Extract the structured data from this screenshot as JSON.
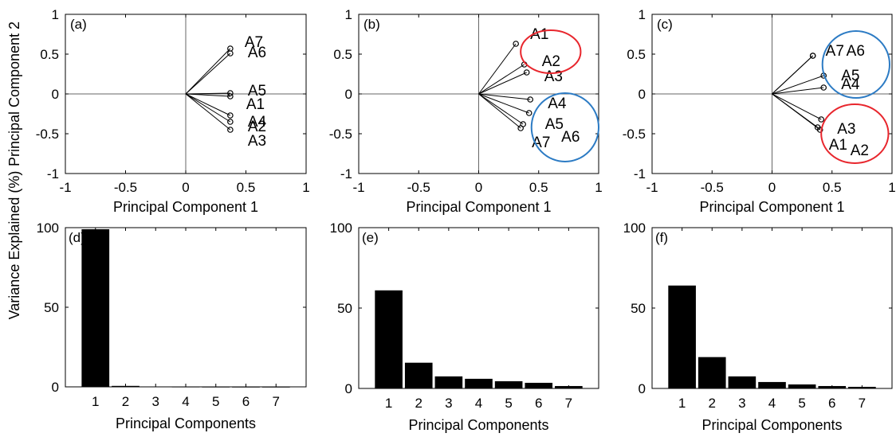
{
  "chart_data": [
    {
      "id": "a",
      "type": "scatter",
      "panel_label": "(a)",
      "xlabel": "Principal Component 1",
      "ylabel": "Principal Component 2",
      "xlim": [
        -1,
        1
      ],
      "ylim": [
        -1,
        1
      ],
      "xticks": [
        "-1",
        "-0.5",
        "0",
        "0.5",
        "1"
      ],
      "yticks": [
        "-1",
        "-0.5",
        "0",
        "0.5",
        "1"
      ],
      "points": [
        {
          "label": "A7",
          "x": 0.37,
          "y": 0.57
        },
        {
          "label": "A6",
          "x": 0.37,
          "y": 0.51
        },
        {
          "label": "A5",
          "x": 0.37,
          "y": 0.01
        },
        {
          "label": "A1",
          "x": 0.37,
          "y": -0.03
        },
        {
          "label": "A4",
          "x": 0.37,
          "y": -0.27
        },
        {
          "label": "A2",
          "x": 0.37,
          "y": -0.35
        },
        {
          "label": "A3",
          "x": 0.37,
          "y": -0.45
        }
      ],
      "circles": []
    },
    {
      "id": "b",
      "type": "scatter",
      "panel_label": "(b)",
      "xlabel": "Principal Component 1",
      "ylabel": "",
      "xlim": [
        -1,
        1
      ],
      "ylim": [
        -1,
        1
      ],
      "xticks": [
        "-1",
        "-0.5",
        "0",
        "0.5",
        "1"
      ],
      "yticks": [
        "-1",
        "-0.5",
        "0",
        "0.5",
        "1"
      ],
      "points": [
        {
          "label": "A1",
          "x": 0.31,
          "y": 0.63
        },
        {
          "label": "A2",
          "x": 0.38,
          "y": 0.37
        },
        {
          "label": "A3",
          "x": 0.4,
          "y": 0.27
        },
        {
          "label": "A4",
          "x": 0.43,
          "y": -0.07
        },
        {
          "label": "A5",
          "x": 0.42,
          "y": -0.24
        },
        {
          "label": "A6",
          "x": 0.37,
          "y": -0.38
        },
        {
          "label": "A7",
          "x": 0.35,
          "y": -0.43
        }
      ],
      "circles": [
        {
          "cx": 0.6,
          "cy": 0.53,
          "rx": 0.25,
          "ry": 0.27,
          "color": "#e8262d"
        },
        {
          "cx": 0.72,
          "cy": -0.42,
          "rx": 0.28,
          "ry": 0.43,
          "color": "#2c7bc4"
        }
      ]
    },
    {
      "id": "c",
      "type": "scatter",
      "panel_label": "(c)",
      "xlabel": "Principal Component 1",
      "ylabel": "",
      "xlim": [
        -1,
        1
      ],
      "ylim": [
        -1,
        1
      ],
      "xticks": [
        "-1",
        "-0.5",
        "0",
        "0.5",
        "1"
      ],
      "yticks": [
        "-1",
        "-0.5",
        "0",
        "0.5",
        "1"
      ],
      "points": [
        {
          "label": "A7",
          "x": 0.34,
          "y": 0.48
        },
        {
          "label": "A6",
          "x": 0.34,
          "y": 0.48
        },
        {
          "label": "A5",
          "x": 0.43,
          "y": 0.23
        },
        {
          "label": "A4",
          "x": 0.43,
          "y": 0.08
        },
        {
          "label": "A3",
          "x": 0.41,
          "y": -0.32
        },
        {
          "label": "A1",
          "x": 0.38,
          "y": -0.42
        },
        {
          "label": "A2",
          "x": 0.4,
          "y": -0.45
        }
      ],
      "circles": [
        {
          "cx": 0.7,
          "cy": 0.37,
          "rx": 0.28,
          "ry": 0.42,
          "color": "#2c7bc4"
        },
        {
          "cx": 0.69,
          "cy": -0.5,
          "rx": 0.28,
          "ry": 0.37,
          "color": "#e8262d"
        }
      ]
    },
    {
      "id": "d",
      "type": "bar",
      "panel_label": "(d)",
      "xlabel": "Principal Components",
      "ylabel": "Variance Explained (%)",
      "categories": [
        "1",
        "2",
        "3",
        "4",
        "5",
        "6",
        "7"
      ],
      "values": [
        99,
        0.6,
        0.2,
        0.1,
        0.05,
        0.03,
        0.02
      ],
      "ylim": [
        0,
        100
      ],
      "yticks": [
        "0",
        "50",
        "100"
      ]
    },
    {
      "id": "e",
      "type": "bar",
      "panel_label": "(e)",
      "xlabel": "Principal Components",
      "ylabel": "",
      "categories": [
        "1",
        "2",
        "3",
        "4",
        "5",
        "6",
        "7"
      ],
      "values": [
        61,
        16,
        7.5,
        6,
        4.5,
        3.5,
        1.5
      ],
      "ylim": [
        0,
        100
      ],
      "yticks": [
        "0",
        "50",
        "100"
      ]
    },
    {
      "id": "f",
      "type": "bar",
      "panel_label": "(f)",
      "xlabel": "Principal Components",
      "ylabel": "",
      "categories": [
        "1",
        "2",
        "3",
        "4",
        "5",
        "6",
        "7"
      ],
      "values": [
        64,
        19.5,
        7.5,
        4,
        2.5,
        1.5,
        1
      ],
      "ylim": [
        0,
        100
      ],
      "yticks": [
        "0",
        "50",
        "100"
      ]
    }
  ]
}
